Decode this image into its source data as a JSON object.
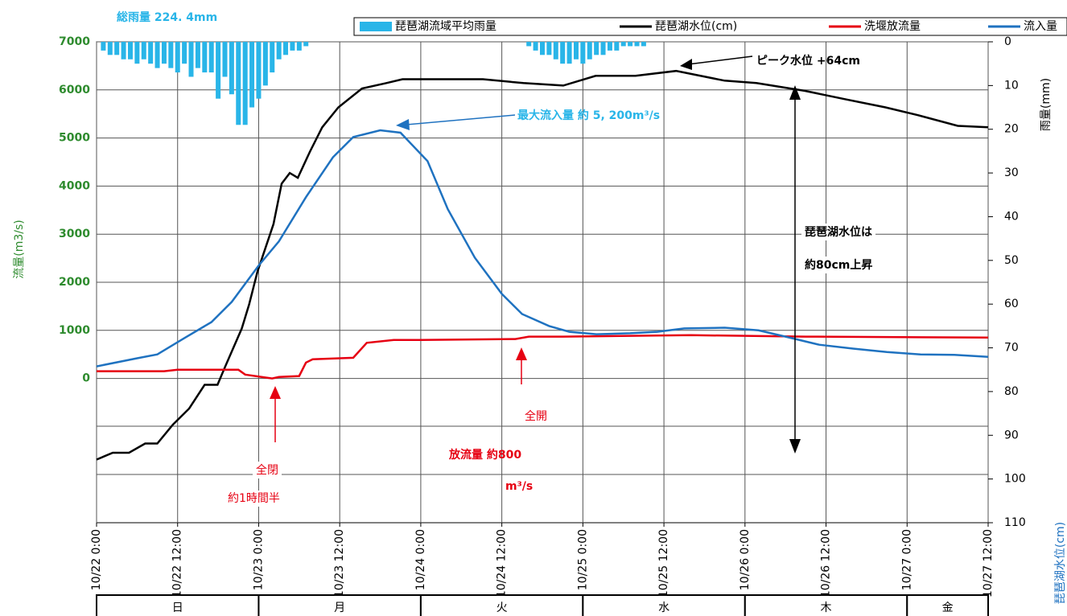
{
  "chart_data": {
    "type": "line",
    "annotations": [
      "総雨量 224. 4mm",
      "ピーク水位 +64cm",
      "最大流入量 約 5, 200m³/s",
      "琵琶湖水位は",
      "約80cm上昇",
      "全開",
      "放流量 約800",
      "m³/s",
      "全閉",
      "約1時間半"
    ],
    "ylabel": "流量(m3/s)",
    "y2label": "雨量(mm)",
    "y3label": "琵琶湖水位(cm)",
    "xlim": [
      0,
      132
    ],
    "xticks": [
      {
        "value": 0,
        "label": "10/22 0:00"
      },
      {
        "value": 12,
        "label": "10/22 12:00"
      },
      {
        "value": 24,
        "label": "10/23 0:00"
      },
      {
        "value": 36,
        "label": "10/23 12:00"
      },
      {
        "value": 48,
        "label": "10/24 0:00"
      },
      {
        "value": 60,
        "label": "10/24 12:00"
      },
      {
        "value": 72,
        "label": "10/25 0:00"
      },
      {
        "value": 84,
        "label": "10/25 12:00"
      },
      {
        "value": 96,
        "label": "10/26 0:00"
      },
      {
        "value": 108,
        "label": "10/26 12:00"
      },
      {
        "value": 120,
        "label": "10/27 0:00"
      },
      {
        "value": 132,
        "label": "10/27 12:00"
      }
    ],
    "ylim": [
      -3000,
      7000
    ],
    "yticks": [
      0,
      1000,
      2000,
      3000,
      4000,
      5000,
      6000,
      7000
    ],
    "y2lim": [
      0,
      110
    ],
    "y2_inverted": true,
    "y2ticks": [
      0,
      10,
      20,
      30,
      40,
      50,
      60,
      70,
      80,
      90,
      100,
      110
    ],
    "y3lim": [
      -29,
      70
    ],
    "grid": true,
    "days": [
      "日",
      "月",
      "火",
      "水",
      "木",
      "金"
    ],
    "day_bounds": [
      0,
      24,
      48,
      72,
      96,
      120,
      132
    ],
    "series": [
      {
        "name": "琵琶湖流域平均雨量",
        "color": "#29b5e8",
        "kind": "bar",
        "axis": "y2",
        "x": [
          1,
          2,
          3,
          4,
          5,
          6,
          7,
          8,
          9,
          10,
          11,
          12,
          13,
          14,
          15,
          16,
          17,
          18,
          19,
          20,
          21,
          22,
          23,
          24,
          25,
          26,
          27,
          28,
          29,
          30,
          31,
          64,
          65,
          66,
          67,
          68,
          69,
          70,
          71,
          72,
          73,
          74,
          75,
          76,
          77,
          78,
          79,
          80,
          81
        ],
        "values": [
          2,
          3,
          3,
          4,
          4,
          5,
          4,
          5,
          6,
          5,
          6,
          7,
          5,
          8,
          6,
          7,
          7,
          13,
          8,
          12,
          19,
          19,
          15,
          13,
          10,
          7,
          4,
          3,
          2,
          2,
          1,
          1,
          2,
          3,
          3,
          4,
          5,
          5,
          4,
          5,
          4,
          3,
          3,
          2,
          2,
          1,
          1,
          1,
          1
        ]
      },
      {
        "name": "琵琶湖水位(cm)",
        "color": "#000000",
        "kind": "line",
        "axis": "y3",
        "x": [
          0,
          2.4,
          4.8,
          7.2,
          9,
          11.3,
          13.7,
          16,
          17.9,
          19,
          21.5,
          22.6,
          23.8,
          26.2,
          27.4,
          28.6,
          29.8,
          31.6,
          33.4,
          35.8,
          39.3,
          42.9,
          45.3,
          50,
          57.2,
          63.2,
          69.1,
          73.9,
          79.8,
          85.8,
          93,
          97.7,
          104.9,
          110.8,
          116.8,
          121.6,
          127.5,
          132
        ],
        "values": [
          -16,
          -14.6,
          -14.6,
          -12.7,
          -12.7,
          -8.8,
          -5.5,
          -0.6,
          -0.6,
          3,
          11,
          16,
          22.6,
          32.5,
          40.8,
          43,
          42,
          47.4,
          52.4,
          56.5,
          60.4,
          61.5,
          62.3,
          62.3,
          62.3,
          61.5,
          61,
          63,
          63,
          64,
          62,
          61.5,
          59.9,
          58.2,
          56.5,
          54.9,
          52.7,
          52.4
        ]
      },
      {
        "name": "洗堰放流量",
        "color": "#e60012",
        "kind": "line",
        "axis": "y",
        "x": [
          0,
          10,
          12,
          21,
          22,
          26,
          27,
          30,
          31,
          32,
          38,
          40,
          44,
          48,
          62,
          64,
          69,
          88,
          105,
          132
        ],
        "values": [
          150,
          150,
          180,
          180,
          80,
          0,
          30,
          50,
          330,
          400,
          430,
          740,
          800,
          800,
          820,
          870,
          870,
          900,
          870,
          850
        ]
      },
      {
        "name": "流入量",
        "color": "#1f72c0",
        "kind": "line",
        "axis": "y",
        "x": [
          0,
          6,
          9,
          13,
          17,
          20,
          24,
          27,
          31,
          35,
          38,
          42,
          45,
          49,
          52,
          56,
          60,
          63,
          67,
          70,
          74,
          79,
          83,
          87,
          93,
          98,
          102,
          107,
          112,
          117,
          122,
          127,
          132
        ],
        "values": [
          250,
          420,
          500,
          840,
          1170,
          1590,
          2350,
          2850,
          3770,
          4600,
          5020,
          5160,
          5110,
          4520,
          3520,
          2510,
          1760,
          1340,
          1090,
          970,
          920,
          940,
          970,
          1040,
          1055,
          1000,
          870,
          700,
          620,
          550,
          500,
          490,
          450
        ]
      }
    ]
  }
}
